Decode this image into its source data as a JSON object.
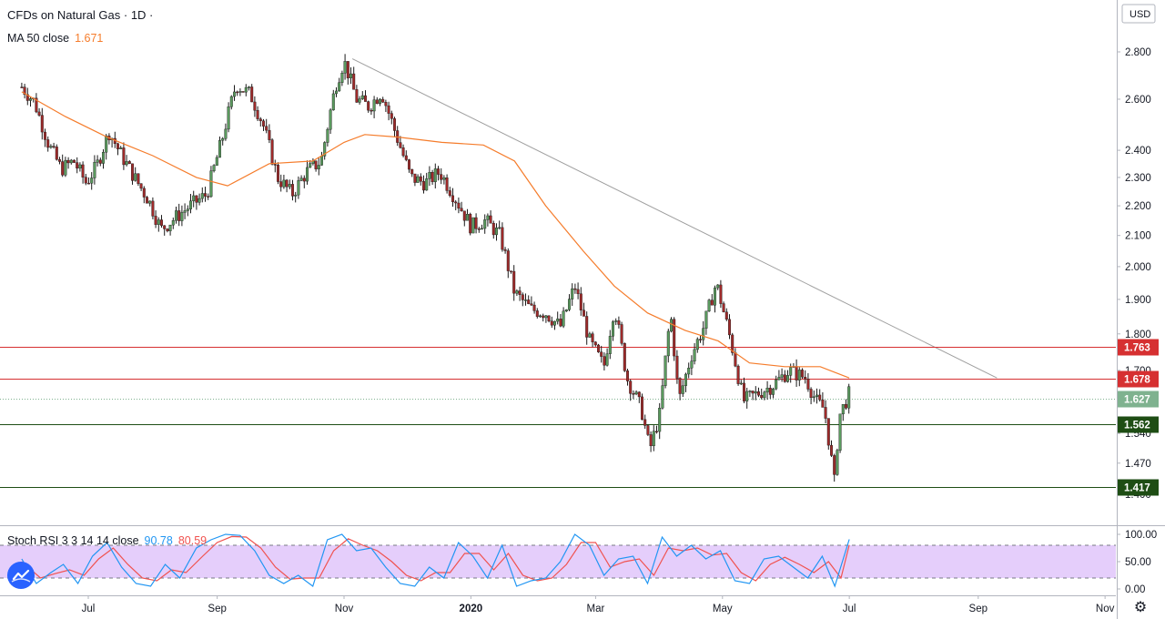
{
  "header": {
    "symbol_title": "CFDs on Natural Gas · 1D ·",
    "ma_label": "MA 50 close",
    "ma_value": "1.671",
    "stoch_label": "Stoch RSI 3 3 14 14 close",
    "stoch_k_value": "90.78",
    "stoch_d_value": "80.59",
    "currency": "USD"
  },
  "colors": {
    "up_candle": "#5a9a5e",
    "down_candle": "#9e2a2a",
    "ma_line": "#f57c2b",
    "stoch_k": "#2196f3",
    "stoch_d": "#f0524f",
    "stoch_band": "#e1c6fa",
    "resistance_line": "#d63031",
    "support_line": "#1e4d14",
    "last_price": "#7fb28f",
    "trendline": "#9e9e9e"
  },
  "icons": {
    "logo": "tradingview-logo-icon",
    "settings": "gear-icon"
  },
  "chart_data": {
    "type": "candlestick",
    "title": "CFDs on Natural Gas · 1D ·",
    "ylabel": "USD",
    "yscale": "log",
    "ylim": [
      1.36,
      2.9
    ],
    "ytick_labels": [
      "2.800",
      "2.600",
      "2.400",
      "2.300",
      "2.200",
      "2.100",
      "2.000",
      "1.900",
      "1.800",
      "1.700",
      "1.540",
      "1.470",
      "1.400"
    ],
    "x_labels": [
      "Jul",
      "Sep",
      "Nov",
      "2020",
      "Mar",
      "May",
      "Jul",
      "Sep",
      "Nov"
    ],
    "date_range": [
      "2019-05-30",
      "2020-07-01"
    ],
    "price_path": [
      [
        "2019-05-30",
        2.65
      ],
      [
        "2019-06-05",
        2.59
      ],
      [
        "2019-06-12",
        2.42
      ],
      [
        "2019-06-18",
        2.33
      ],
      [
        "2019-06-24",
        2.36
      ],
      [
        "2019-06-30",
        2.28
      ],
      [
        "2019-07-05",
        2.34
      ],
      [
        "2019-07-11",
        2.47
      ],
      [
        "2019-07-17",
        2.38
      ],
      [
        "2019-07-24",
        2.29
      ],
      [
        "2019-07-30",
        2.22
      ],
      [
        "2019-08-05",
        2.12
      ],
      [
        "2019-08-12",
        2.16
      ],
      [
        "2019-08-19",
        2.2
      ],
      [
        "2019-08-27",
        2.24
      ],
      [
        "2019-09-03",
        2.43
      ],
      [
        "2019-09-10",
        2.66
      ],
      [
        "2019-09-17",
        2.62
      ],
      [
        "2019-09-23",
        2.5
      ],
      [
        "2019-09-30",
        2.3
      ],
      [
        "2019-10-07",
        2.24
      ],
      [
        "2019-10-14",
        2.32
      ],
      [
        "2019-10-21",
        2.36
      ],
      [
        "2019-10-28",
        2.66
      ],
      [
        "2019-11-01",
        2.76
      ],
      [
        "2019-11-07",
        2.6
      ],
      [
        "2019-11-13",
        2.57
      ],
      [
        "2019-11-19",
        2.63
      ],
      [
        "2019-11-26",
        2.46
      ],
      [
        "2019-12-03",
        2.3
      ],
      [
        "2019-12-10",
        2.28
      ],
      [
        "2019-12-17",
        2.32
      ],
      [
        "2019-12-25",
        2.22
      ],
      [
        "2020-01-01",
        2.13
      ],
      [
        "2020-01-08",
        2.15
      ],
      [
        "2020-01-15",
        2.1
      ],
      [
        "2020-01-22",
        1.92
      ],
      [
        "2020-01-30",
        1.87
      ],
      [
        "2020-02-06",
        1.86
      ],
      [
        "2020-02-13",
        1.82
      ],
      [
        "2020-02-20",
        1.94
      ],
      [
        "2020-02-27",
        1.78
      ],
      [
        "2020-03-05",
        1.71
      ],
      [
        "2020-03-10",
        1.88
      ],
      [
        "2020-03-16",
        1.68
      ],
      [
        "2020-03-23",
        1.6
      ],
      [
        "2020-03-27",
        1.5
      ],
      [
        "2020-04-01",
        1.59
      ],
      [
        "2020-04-06",
        1.86
      ],
      [
        "2020-04-10",
        1.62
      ],
      [
        "2020-04-16",
        1.74
      ],
      [
        "2020-04-22",
        1.82
      ],
      [
        "2020-04-28",
        1.95
      ],
      [
        "2020-05-05",
        1.78
      ],
      [
        "2020-05-11",
        1.62
      ],
      [
        "2020-05-18",
        1.64
      ],
      [
        "2020-05-25",
        1.66
      ],
      [
        "2020-06-02",
        1.7
      ],
      [
        "2020-06-10",
        1.68
      ],
      [
        "2020-06-15",
        1.62
      ],
      [
        "2020-06-19",
        1.6
      ],
      [
        "2020-06-24",
        1.42
      ],
      [
        "2020-06-26",
        1.58
      ],
      [
        "2020-07-01",
        1.64
      ]
    ],
    "ma50_path": [
      [
        "2019-05-30",
        2.63
      ],
      [
        "2019-06-20",
        2.53
      ],
      [
        "2019-07-10",
        2.45
      ],
      [
        "2019-08-01",
        2.38
      ],
      [
        "2019-08-22",
        2.3
      ],
      [
        "2019-09-06",
        2.27
      ],
      [
        "2019-09-26",
        2.35
      ],
      [
        "2019-10-17",
        2.36
      ],
      [
        "2019-11-01",
        2.43
      ],
      [
        "2019-11-11",
        2.46
      ],
      [
        "2019-11-27",
        2.45
      ],
      [
        "2019-12-18",
        2.43
      ],
      [
        "2020-01-07",
        2.42
      ],
      [
        "2020-01-22",
        2.36
      ],
      [
        "2020-02-06",
        2.2
      ],
      [
        "2020-02-24",
        2.05
      ],
      [
        "2020-03-10",
        1.94
      ],
      [
        "2020-03-26",
        1.86
      ],
      [
        "2020-04-13",
        1.81
      ],
      [
        "2020-04-29",
        1.78
      ],
      [
        "2020-05-14",
        1.72
      ],
      [
        "2020-05-31",
        1.71
      ],
      [
        "2020-06-17",
        1.71
      ],
      [
        "2020-07-01",
        1.68
      ]
    ],
    "ma50_last": 1.671,
    "trendline": {
      "start": [
        "2019-11-05",
        2.77
      ],
      "end": [
        "2020-09-10",
        1.68
      ]
    },
    "horizontal_levels": [
      {
        "value": 1.763,
        "label": "1.763",
        "kind": "resistance"
      },
      {
        "value": 1.678,
        "label": "1.678",
        "kind": "resistance"
      },
      {
        "value": 1.627,
        "label": "1.627",
        "kind": "last"
      },
      {
        "value": 1.562,
        "label": "1.562",
        "kind": "support"
      },
      {
        "value": 1.417,
        "label": "1.417",
        "kind": "support"
      }
    ],
    "stoch_rsi": {
      "ylim": [
        0,
        100
      ],
      "ytick_labels": [
        "100.00",
        "50.00",
        "0.00"
      ],
      "overbought": 80,
      "oversold": 20,
      "k_last": 90.78,
      "d_last": 80.59,
      "k_path": [
        [
          "2019-05-30",
          55
        ],
        [
          "2019-06-06",
          10
        ],
        [
          "2019-06-13",
          30
        ],
        [
          "2019-06-19",
          45
        ],
        [
          "2019-06-26",
          10
        ],
        [
          "2019-07-03",
          60
        ],
        [
          "2019-07-10",
          85
        ],
        [
          "2019-07-17",
          40
        ],
        [
          "2019-07-24",
          10
        ],
        [
          "2019-07-31",
          5
        ],
        [
          "2019-08-07",
          45
        ],
        [
          "2019-08-14",
          20
        ],
        [
          "2019-08-22",
          75
        ],
        [
          "2019-08-29",
          90
        ],
        [
          "2019-09-05",
          100
        ],
        [
          "2019-09-12",
          98
        ],
        [
          "2019-09-19",
          70
        ],
        [
          "2019-09-26",
          25
        ],
        [
          "2019-10-03",
          10
        ],
        [
          "2019-10-10",
          25
        ],
        [
          "2019-10-17",
          5
        ],
        [
          "2019-10-24",
          90
        ],
        [
          "2019-10-31",
          100
        ],
        [
          "2019-11-07",
          70
        ],
        [
          "2019-11-14",
          75
        ],
        [
          "2019-11-21",
          40
        ],
        [
          "2019-11-28",
          10
        ],
        [
          "2019-12-05",
          5
        ],
        [
          "2019-12-12",
          40
        ],
        [
          "2019-12-19",
          20
        ],
        [
          "2019-12-26",
          85
        ],
        [
          "2020-01-02",
          60
        ],
        [
          "2020-01-09",
          20
        ],
        [
          "2020-01-16",
          80
        ],
        [
          "2020-01-23",
          5
        ],
        [
          "2020-01-30",
          15
        ],
        [
          "2020-02-06",
          20
        ],
        [
          "2020-02-13",
          50
        ],
        [
          "2020-02-20",
          100
        ],
        [
          "2020-02-27",
          80
        ],
        [
          "2020-03-05",
          25
        ],
        [
          "2020-03-12",
          55
        ],
        [
          "2020-03-19",
          60
        ],
        [
          "2020-03-26",
          10
        ],
        [
          "2020-04-02",
          95
        ],
        [
          "2020-04-09",
          60
        ],
        [
          "2020-04-16",
          80
        ],
        [
          "2020-04-23",
          55
        ],
        [
          "2020-04-30",
          70
        ],
        [
          "2020-05-07",
          15
        ],
        [
          "2020-05-14",
          10
        ],
        [
          "2020-05-21",
          55
        ],
        [
          "2020-05-28",
          60
        ],
        [
          "2020-06-04",
          40
        ],
        [
          "2020-06-11",
          20
        ],
        [
          "2020-06-18",
          60
        ],
        [
          "2020-06-24",
          5
        ],
        [
          "2020-07-01",
          90.78
        ]
      ],
      "d_path": [
        [
          "2019-05-30",
          50
        ],
        [
          "2019-06-08",
          20
        ],
        [
          "2019-06-15",
          28
        ],
        [
          "2019-06-22",
          35
        ],
        [
          "2019-06-29",
          25
        ],
        [
          "2019-07-06",
          55
        ],
        [
          "2019-07-13",
          75
        ],
        [
          "2019-07-20",
          45
        ],
        [
          "2019-07-27",
          20
        ],
        [
          "2019-08-03",
          15
        ],
        [
          "2019-08-10",
          35
        ],
        [
          "2019-08-17",
          30
        ],
        [
          "2019-08-25",
          60
        ],
        [
          "2019-09-01",
          85
        ],
        [
          "2019-09-08",
          96
        ],
        [
          "2019-09-15",
          95
        ],
        [
          "2019-09-22",
          75
        ],
        [
          "2019-09-29",
          40
        ],
        [
          "2019-10-06",
          18
        ],
        [
          "2019-10-13",
          20
        ],
        [
          "2019-10-20",
          20
        ],
        [
          "2019-10-27",
          70
        ],
        [
          "2019-11-03",
          92
        ],
        [
          "2019-11-10",
          80
        ],
        [
          "2019-11-17",
          70
        ],
        [
          "2019-11-24",
          50
        ],
        [
          "2019-12-01",
          25
        ],
        [
          "2019-12-08",
          15
        ],
        [
          "2019-12-15",
          30
        ],
        [
          "2019-12-22",
          30
        ],
        [
          "2019-12-29",
          65
        ],
        [
          "2020-01-05",
          65
        ],
        [
          "2020-01-12",
          35
        ],
        [
          "2020-01-19",
          65
        ],
        [
          "2020-01-26",
          25
        ],
        [
          "2020-02-02",
          15
        ],
        [
          "2020-02-09",
          20
        ],
        [
          "2020-02-16",
          45
        ],
        [
          "2020-02-23",
          85
        ],
        [
          "2020-03-01",
          85
        ],
        [
          "2020-03-08",
          40
        ],
        [
          "2020-03-15",
          50
        ],
        [
          "2020-03-22",
          55
        ],
        [
          "2020-03-29",
          25
        ],
        [
          "2020-04-05",
          75
        ],
        [
          "2020-04-12",
          70
        ],
        [
          "2020-04-19",
          75
        ],
        [
          "2020-04-26",
          62
        ],
        [
          "2020-05-03",
          65
        ],
        [
          "2020-05-10",
          30
        ],
        [
          "2020-05-17",
          15
        ],
        [
          "2020-05-24",
          45
        ],
        [
          "2020-05-31",
          58
        ],
        [
          "2020-06-07",
          45
        ],
        [
          "2020-06-14",
          30
        ],
        [
          "2020-06-21",
          50
        ],
        [
          "2020-06-27",
          20
        ],
        [
          "2020-07-01",
          80.59
        ]
      ]
    }
  }
}
